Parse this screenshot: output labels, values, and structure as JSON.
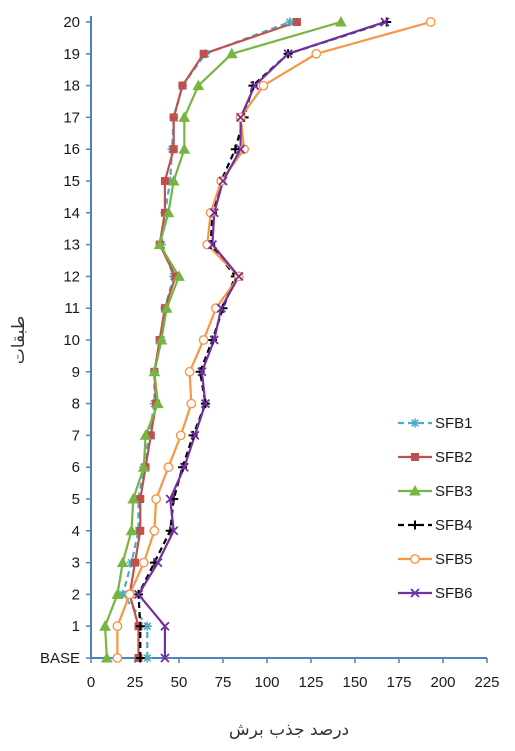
{
  "chart_data": {
    "type": "line",
    "orientation": "horizontal-values",
    "title": "",
    "xlabel": "درصد جذب برش",
    "ylabel": "طبقات",
    "xlim": [
      0,
      225
    ],
    "x_ticks": [
      0,
      25,
      50,
      75,
      100,
      125,
      150,
      175,
      200,
      225
    ],
    "categories": [
      "BASE",
      "1",
      "2",
      "3",
      "4",
      "5",
      "6",
      "7",
      "8",
      "9",
      "10",
      "11",
      "12",
      "13",
      "14",
      "15",
      "16",
      "17",
      "18",
      "19",
      "20"
    ],
    "grid": false,
    "legend_position": "right",
    "series": [
      {
        "name": "SFB1",
        "color": "#4bacc6",
        "marker": "star",
        "dash": "6,4",
        "values": [
          32,
          32,
          18,
          23,
          27,
          27,
          30,
          33,
          36,
          36,
          40,
          42,
          47,
          40,
          42,
          45,
          46,
          47,
          52,
          65,
          113
        ]
      },
      {
        "name": "SFB2",
        "color": "#c0504d",
        "marker": "square",
        "dash": "",
        "values": [
          27,
          27,
          22,
          25,
          28,
          28,
          31,
          34,
          37,
          36,
          39,
          42,
          48,
          39,
          42,
          42,
          47,
          47,
          52,
          64,
          117
        ]
      },
      {
        "name": "SFB3",
        "color": "#77b543",
        "marker": "triangle",
        "dash": "",
        "values": [
          9,
          8,
          15,
          18,
          23,
          24,
          30,
          31,
          38,
          36,
          40,
          43,
          50,
          39,
          44,
          47,
          53,
          53,
          61,
          80,
          142
        ]
      },
      {
        "name": "SFB4",
        "color": "#000000",
        "marker": "plus",
        "dash": "6,4",
        "values": [
          28,
          28,
          27,
          36,
          45,
          47,
          52,
          58,
          65,
          62,
          69,
          75,
          82,
          68,
          69,
          74,
          82,
          87,
          92,
          112,
          168
        ]
      },
      {
        "name": "SFB5",
        "color": "#f79646",
        "marker": "circle",
        "dash": "",
        "values": [
          15,
          15,
          22,
          30,
          36,
          37,
          44,
          51,
          57,
          56,
          64,
          71,
          84,
          66,
          68,
          74,
          87,
          85,
          98,
          128,
          193
        ]
      },
      {
        "name": "SFB6",
        "color": "#7030a0",
        "marker": "cross",
        "dash": "",
        "values": [
          42,
          42,
          27,
          38,
          47,
          45,
          53,
          59,
          65,
          63,
          70,
          74,
          84,
          69,
          70,
          75,
          85,
          85,
          93,
          112,
          167
        ]
      }
    ]
  }
}
